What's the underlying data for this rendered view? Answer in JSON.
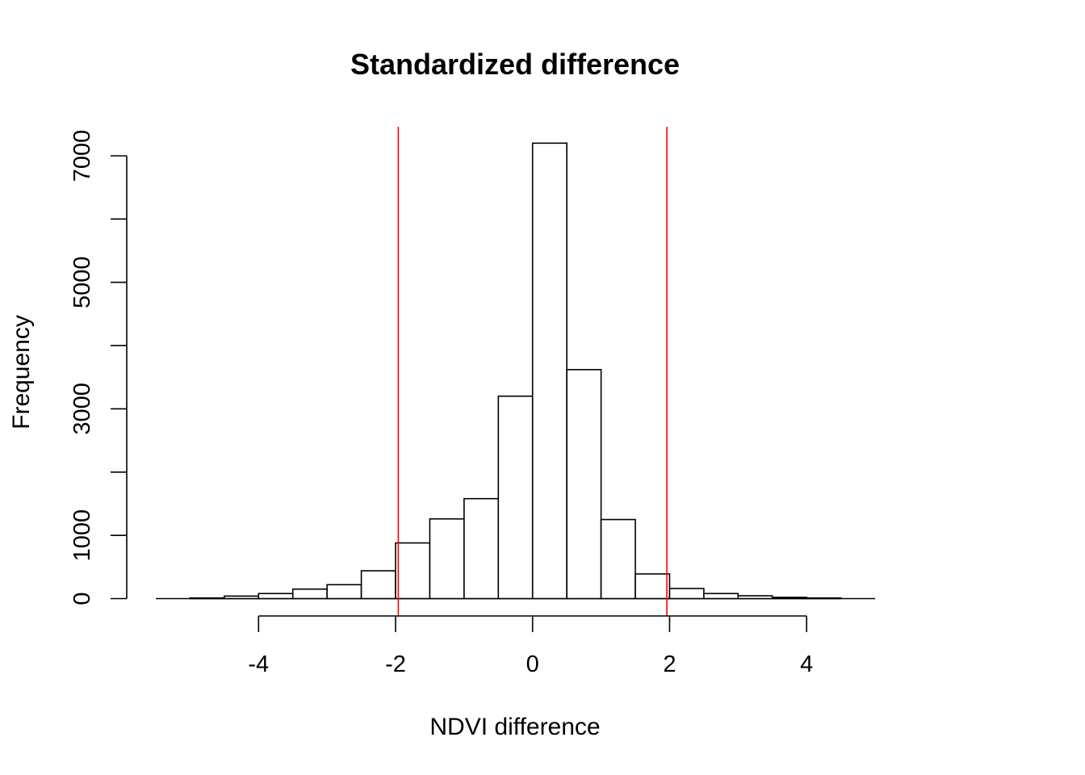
{
  "chart_data": {
    "type": "bar",
    "title": "Standardized difference",
    "xlabel": "NDVI difference",
    "ylabel": "Frequency",
    "bin_edges": [
      -5,
      -4.5,
      -4,
      -3.5,
      -3,
      -2.5,
      -2,
      -1.5,
      -1,
      -0.5,
      0,
      0.5,
      1,
      1.5,
      2,
      2.5,
      3,
      3.5,
      4,
      4.5
    ],
    "values": [
      10,
      40,
      80,
      150,
      220,
      440,
      880,
      1260,
      1580,
      3200,
      7200,
      3620,
      1250,
      390,
      160,
      80,
      45,
      20,
      10
    ],
    "xlim": [
      -5.5,
      5
    ],
    "ylim": [
      0,
      7000
    ],
    "x_ticks": [
      -4,
      -2,
      0,
      2,
      4
    ],
    "x_tick_labels": [
      "-4",
      "-2",
      "0",
      "2",
      "4"
    ],
    "y_ticks": [
      0,
      1000,
      2000,
      3000,
      4000,
      5000,
      6000,
      7000
    ],
    "y_tick_labels": [
      "0",
      "1000",
      "3000",
      "5000",
      "7000"
    ],
    "y_labeled_ticks": [
      0,
      1000,
      3000,
      5000,
      7000
    ],
    "reference_lines": [
      {
        "x": -1.96,
        "color": "#ff0000"
      },
      {
        "x": 1.96,
        "color": "#ff0000"
      }
    ],
    "grid": false,
    "bar_fill": "#ffffff",
    "bar_stroke": "#000000"
  }
}
